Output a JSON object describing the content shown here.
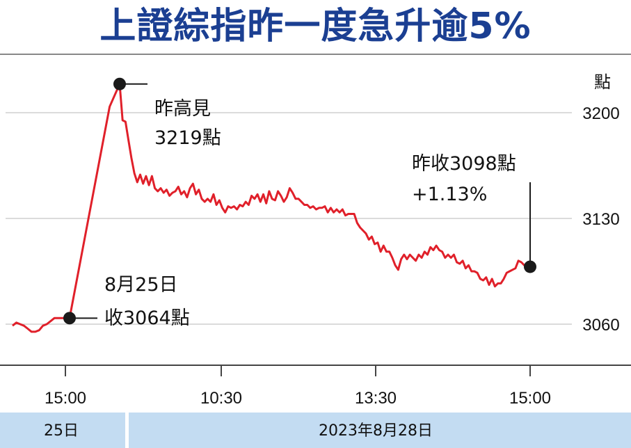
{
  "title": "上證綜指昨一度急升逾5%",
  "chart_data": {
    "type": "line",
    "y_unit": "點",
    "ylim": [
      3035,
      3230
    ],
    "yticks": [
      3060,
      3130,
      3200
    ],
    "ytick_labels": [
      "3060",
      "3130",
      "3200"
    ],
    "xtick_labels": [
      "15:00",
      "10:30",
      "13:30",
      "15:00"
    ],
    "date_band": [
      "25日",
      "2023年8月28日"
    ],
    "line_color": "#e0202a",
    "series": [
      {
        "values": [
          3059,
          3061,
          3060,
          3059,
          3057,
          3055,
          3055,
          3056,
          3059,
          3060,
          3062,
          3064,
          3064,
          3064,
          3064,
          3064,
          3099,
          3134,
          3169,
          3204,
          3219,
          3195,
          3194,
          3182,
          3170,
          3160,
          3154,
          3159,
          3153,
          3158,
          3152,
          3158,
          3150,
          3148,
          3150,
          3147,
          3149,
          3145,
          3147,
          3148,
          3151,
          3146,
          3148,
          3144,
          3150,
          3153,
          3146,
          3149,
          3143,
          3141,
          3143,
          3141,
          3146,
          3139,
          3142,
          3137,
          3134,
          3138,
          3137,
          3138,
          3136,
          3139,
          3138,
          3141,
          3139,
          3145,
          3143,
          3146,
          3141,
          3146,
          3140,
          3148,
          3143,
          3142,
          3148,
          3145,
          3141,
          3144,
          3150,
          3147,
          3143,
          3143,
          3141,
          3139,
          3139,
          3137,
          3138,
          3136,
          3137,
          3137,
          3138,
          3134,
          3137,
          3134,
          3136,
          3134,
          3136,
          3132,
          3133,
          3133,
          3133,
          3127,
          3124,
          3122,
          3120,
          3116,
          3118,
          3113,
          3114,
          3108,
          3112,
          3108,
          3108,
          3104,
          3099,
          3096,
          3103,
          3106,
          3103,
          3106,
          3104,
          3102,
          3106,
          3104,
          3108,
          3106,
          3111,
          3109,
          3112,
          3109,
          3108,
          3104,
          3106,
          3104,
          3106,
          3101,
          3100,
          3102,
          3097,
          3099,
          3095,
          3095,
          3094,
          3090,
          3089,
          3091,
          3086,
          3090,
          3085,
          3087,
          3087,
          3090,
          3094,
          3095,
          3096,
          3097,
          3102,
          3101,
          3099,
          3098,
          3098
        ]
      }
    ],
    "annotations": [
      {
        "point": "start_day",
        "value": 3064,
        "lines": [
          "8月25日",
          "收3064點"
        ]
      },
      {
        "point": "high",
        "value": 3219,
        "lines": [
          "昨高見",
          "3219點"
        ]
      },
      {
        "point": "close",
        "value": 3098,
        "lines": [
          "昨收3098點",
          "+1.13%"
        ]
      }
    ],
    "grid": true
  },
  "colors": {
    "title": "#1b3f92",
    "band": "#c3dcf2",
    "marker": "#1a1a1a"
  }
}
